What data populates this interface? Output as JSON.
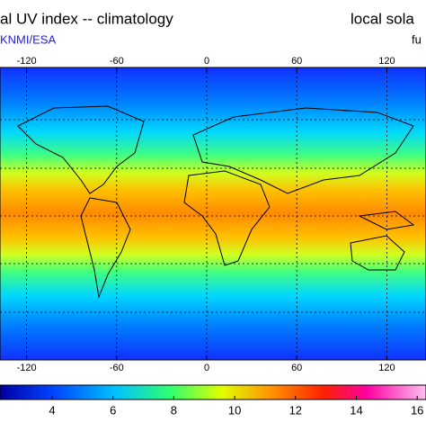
{
  "header": {
    "title": "al UV index -- climatology",
    "subtitle": "KNMI/ESA",
    "right_title": "local sola",
    "right_subtitle": "fu"
  },
  "map": {
    "lon_ticks": [
      -120,
      -60,
      0,
      60,
      120
    ]
  },
  "colorbar": {
    "ticks": [
      4,
      6,
      8,
      10,
      12,
      14,
      16
    ]
  }
}
